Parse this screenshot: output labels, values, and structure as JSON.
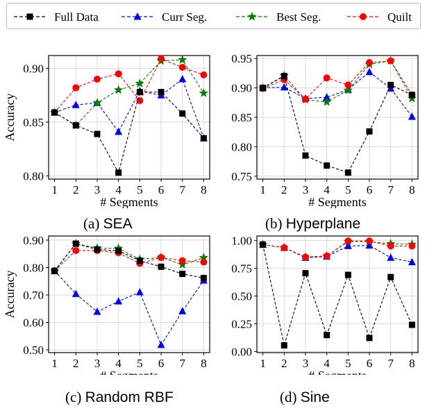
{
  "legend": {
    "entries": [
      {
        "label": "Full Data",
        "color": "#000000",
        "marker": "square"
      },
      {
        "label": "Curr Seg.",
        "color": "#0000ff",
        "marker": "triangle"
      },
      {
        "label": "Best Seg.",
        "color": "#007f00",
        "marker": "star"
      },
      {
        "label": "Quilt",
        "color": "#ff0000",
        "marker": "circle"
      }
    ]
  },
  "chart_data": [
    {
      "type": "line",
      "caption_prefix": "(a)",
      "caption_name": "SEA",
      "xlabel": "# Segments",
      "ylabel": "Accuracy",
      "x": [
        1,
        2,
        3,
        4,
        5,
        6,
        7,
        8
      ],
      "ylim": [
        0.797,
        0.912
      ],
      "yticks": [
        "0.80",
        "0.85",
        "0.90"
      ],
      "grid": true,
      "series": [
        {
          "name": "Full Data",
          "values": [
            0.859,
            0.847,
            0.839,
            0.803,
            0.878,
            0.878,
            0.858,
            0.835
          ]
        },
        {
          "name": "Curr Seg.",
          "values": [
            0.859,
            0.866,
            0.868,
            0.841,
            0.879,
            0.875,
            0.89,
            0.835
          ]
        },
        {
          "name": "Best Seg.",
          "values": [
            0.859,
            0.847,
            0.868,
            0.88,
            0.886,
            0.907,
            0.908,
            0.877
          ]
        },
        {
          "name": "Quilt",
          "values": [
            0.859,
            0.882,
            0.89,
            0.895,
            0.87,
            0.909,
            0.901,
            0.894
          ]
        }
      ]
    },
    {
      "type": "line",
      "caption_prefix": "(b)",
      "caption_name": "Hyperplane",
      "xlabel": "# Segments",
      "ylabel": "",
      "x": [
        1,
        2,
        3,
        4,
        5,
        6,
        7,
        8
      ],
      "ylim": [
        0.745,
        0.955
      ],
      "yticks": [
        "0.75",
        "0.80",
        "0.85",
        "0.90",
        "0.95"
      ],
      "grid": true,
      "series": [
        {
          "name": "Full Data",
          "values": [
            0.9,
            0.92,
            0.785,
            0.768,
            0.756,
            0.826,
            0.905,
            0.888
          ]
        },
        {
          "name": "Curr Seg.",
          "values": [
            0.9,
            0.901,
            0.882,
            0.884,
            0.897,
            0.927,
            0.899,
            0.851
          ]
        },
        {
          "name": "Best Seg.",
          "values": [
            0.9,
            0.921,
            0.88,
            0.876,
            0.896,
            0.94,
            0.946,
            0.882
          ]
        },
        {
          "name": "Quilt",
          "values": [
            0.899,
            0.914,
            0.881,
            0.917,
            0.905,
            0.943,
            0.946,
            0.888
          ]
        }
      ]
    },
    {
      "type": "line",
      "caption_prefix": "(c)",
      "caption_name": "Random RBF",
      "xlabel": "# Segments",
      "ylabel": "Accuracy",
      "x": [
        1,
        2,
        3,
        4,
        5,
        6,
        7,
        8
      ],
      "ylim": [
        0.49,
        0.915
      ],
      "yticks": [
        "0.50",
        "0.60",
        "0.70",
        "0.80",
        "0.90"
      ],
      "grid": true,
      "series": [
        {
          "name": "Full Data",
          "values": [
            0.788,
            0.887,
            0.866,
            0.861,
            0.825,
            0.803,
            0.777,
            0.762
          ]
        },
        {
          "name": "Curr Seg.",
          "values": [
            0.788,
            0.704,
            0.639,
            0.677,
            0.71,
            0.518,
            0.641,
            0.753
          ]
        },
        {
          "name": "Best Seg.",
          "values": [
            0.788,
            0.887,
            0.871,
            0.87,
            0.83,
            0.837,
            0.811,
            0.836
          ]
        },
        {
          "name": "Quilt",
          "values": [
            0.788,
            0.862,
            0.862,
            0.854,
            0.815,
            0.837,
            0.825,
            0.82
          ]
        }
      ]
    },
    {
      "type": "line",
      "caption_prefix": "(d)",
      "caption_name": "Sine",
      "xlabel": "# Segments",
      "ylabel": "",
      "x": [
        1,
        2,
        3,
        4,
        5,
        6,
        7,
        8
      ],
      "ylim": [
        -0.01,
        1.04
      ],
      "yticks": [
        "0.00",
        "0.25",
        "0.50",
        "0.75",
        "1.00"
      ],
      "grid": true,
      "series": [
        {
          "name": "Full Data",
          "values": [
            0.963,
            0.055,
            0.705,
            0.148,
            0.69,
            0.122,
            0.67,
            0.24
          ]
        },
        {
          "name": "Curr Seg.",
          "values": [
            0.963,
            0.935,
            0.845,
            0.855,
            0.95,
            0.955,
            0.845,
            0.805
          ]
        },
        {
          "name": "Best Seg.",
          "values": [
            0.963,
            0.935,
            0.85,
            0.86,
            0.99,
            0.99,
            0.97,
            0.965
          ]
        },
        {
          "name": "Quilt",
          "values": [
            0.963,
            0.935,
            0.85,
            0.86,
            0.995,
            0.995,
            0.95,
            0.95
          ]
        }
      ]
    }
  ]
}
